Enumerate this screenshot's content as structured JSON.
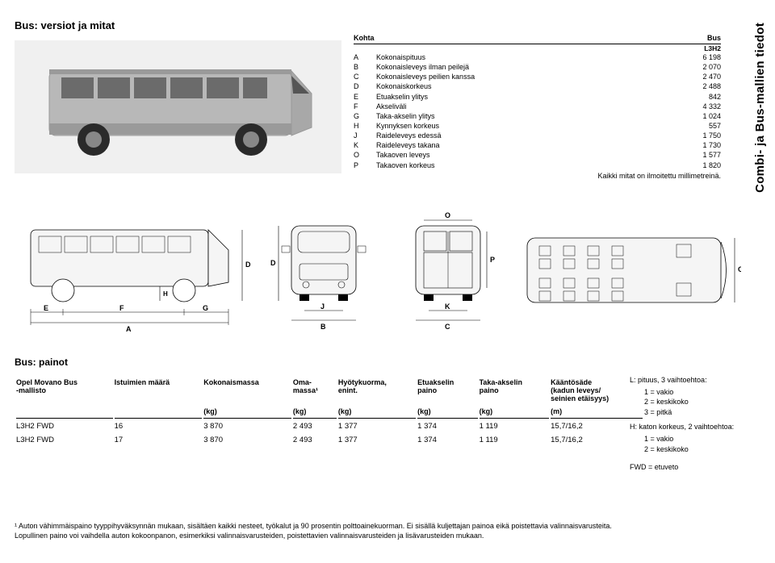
{
  "title": "Bus: versiot ja mitat",
  "sidebar_title": "Combi- ja Bus-mallien tiedot",
  "colors": {
    "text": "#000000",
    "background": "#ffffff",
    "hero_bg": "#f0f0f0",
    "bus_body": "#b8b8b8",
    "bus_body_dark": "#9a9a9a",
    "tire": "#2a2a2a",
    "window": "#6b6b6b",
    "line": "#000000"
  },
  "dimensions_table": {
    "header": {
      "col1": "Kohta",
      "col3": "Bus"
    },
    "subheader": {
      "col3": "L3H2"
    },
    "rows": [
      {
        "code": "A",
        "label": "Kokonaispituus",
        "value": "6 198"
      },
      {
        "code": "B",
        "label": "Kokonaisleveys ilman peilejä",
        "value": "2 070"
      },
      {
        "code": "C",
        "label": "Kokonaisleveys peilien kanssa",
        "value": "2 470"
      },
      {
        "code": "D",
        "label": "Kokonaiskorkeus",
        "value": "2 488"
      },
      {
        "code": "E",
        "label": "Etuakselin ylitys",
        "value": "842"
      },
      {
        "code": "F",
        "label": "Akseliväli",
        "value": "4 332"
      },
      {
        "code": "G",
        "label": "Taka-akselin ylitys",
        "value": "1 024"
      },
      {
        "code": "H",
        "label": "Kynnyksen korkeus",
        "value": "557"
      },
      {
        "code": "J",
        "label": "Raideleveys edessä",
        "value": "1 750"
      },
      {
        "code": "K",
        "label": "Raideleveys takana",
        "value": "1 730"
      },
      {
        "code": "O",
        "label": "Takaoven leveys",
        "value": "1 577"
      },
      {
        "code": "P",
        "label": "Takaoven korkeus",
        "value": "1 820"
      }
    ],
    "note": "Kaikki mitat on ilmoitettu millimetreinä."
  },
  "diagram_labels": {
    "E": "E",
    "F": "F",
    "G": "G",
    "A": "A",
    "H": "H",
    "D": "D",
    "J": "J",
    "B": "B",
    "K": "K",
    "C": "C",
    "O": "O",
    "P": "P"
  },
  "weights_section_title": "Bus: painot",
  "weights_table": {
    "columns": [
      "Opel Movano Bus\n-mallisto",
      "Istuimien määrä",
      "Kokonaismassa",
      "Oma-\nmassa¹",
      "Hyötykuorma,\nenint.",
      "Etuakselin\npaino",
      "Taka-akselin\npaino",
      "Kääntösäde\n(kadun leveys/\nseinien etäisyys)"
    ],
    "units": [
      "",
      "",
      "(kg)",
      "(kg)",
      "(kg)",
      "(kg)",
      "(kg)",
      "(m)"
    ],
    "rows": [
      [
        "L3H2 FWD",
        "16",
        "3 870",
        "2 493",
        "1 377",
        "1 374",
        "1 119",
        "15,7/16,2"
      ],
      [
        "L3H2 FWD",
        "17",
        "3 870",
        "2 493",
        "1 377",
        "1 374",
        "1 119",
        "15,7/16,2"
      ]
    ]
  },
  "legend": {
    "l_label": "L:  pituus, 3 vaihtoehtoa:",
    "l1": "1 = vakio",
    "l2": "2 = keskikoko",
    "l3": "3 = pitkä",
    "h_label": "H:  katon korkeus, 2 vaihtoehtoa:",
    "h1": "1 = vakio",
    "h2": "2 = keskikoko",
    "fwd": "FWD = etuveto"
  },
  "footnote": "¹ Auton vähimmäispaino tyyppihyväksynnän mukaan, sisältäen kaikki nesteet, työkalut ja 90 prosentin polttoainekuorman. Ei sisällä kuljettajan painoa eikä poistettavia valinnaisvarusteita. Lopullinen paino voi vaihdella auton kokoonpanon, esimerkiksi valinnaisvarusteiden, poistettavien valinnaisvarusteiden ja lisävarusteiden mukaan."
}
